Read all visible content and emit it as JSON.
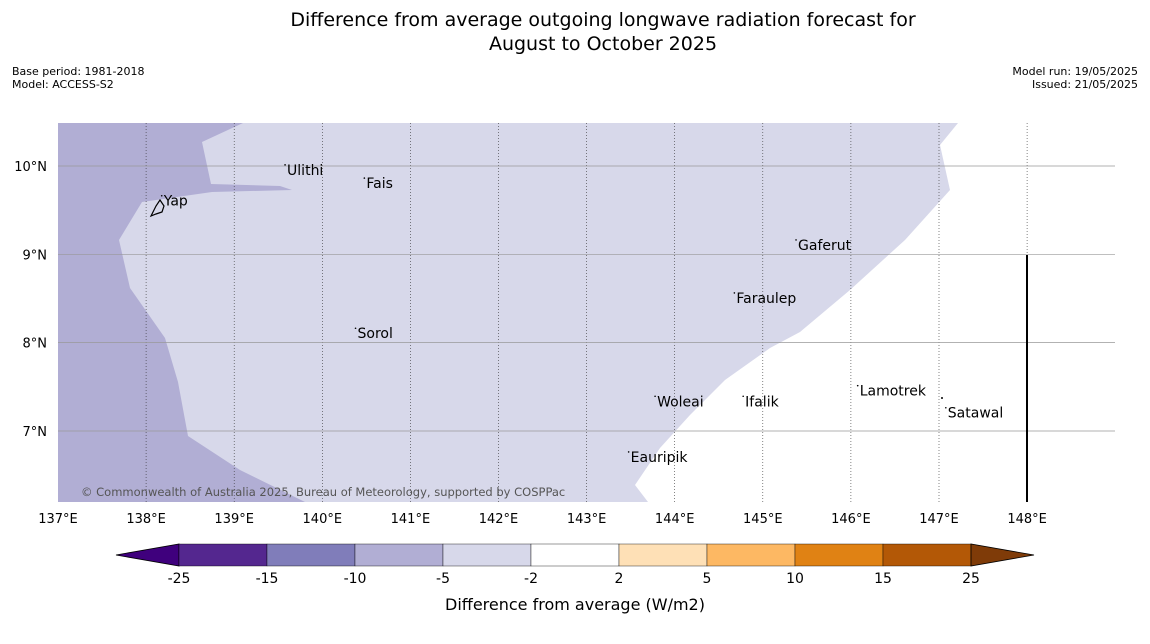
{
  "header": {
    "title_line1": "Difference from average outgoing longwave radiation forecast for",
    "title_line2": "August to October 2025",
    "base_period": "Base period: 1981-2018",
    "model": "Model: ACCESS-S2",
    "model_run": "Model run: 19/05/2025",
    "issued": "Issued: 21/05/2025"
  },
  "map": {
    "lon_ticks": [
      "137°E",
      "138°E",
      "139°E",
      "140°E",
      "141°E",
      "142°E",
      "143°E",
      "144°E",
      "145°E",
      "146°E",
      "147°E",
      "148°E"
    ],
    "lat_ticks": [
      "10°N",
      "9°N",
      "8°N",
      "7°N"
    ],
    "places": [
      {
        "name": "Ulithi",
        "lon": 139.6,
        "lat": 9.9
      },
      {
        "name": "Fais",
        "lon": 140.5,
        "lat": 9.75
      },
      {
        "name": "Yap",
        "lon": 138.2,
        "lat": 9.55
      },
      {
        "name": "Gaferut",
        "lon": 145.4,
        "lat": 9.05
      },
      {
        "name": "Faraulep",
        "lon": 144.7,
        "lat": 8.45
      },
      {
        "name": "Sorol",
        "lon": 140.4,
        "lat": 8.05
      },
      {
        "name": "Lamotrek",
        "lon": 146.1,
        "lat": 7.4
      },
      {
        "name": "Woleai",
        "lon": 143.8,
        "lat": 7.28
      },
      {
        "name": "Ifalik",
        "lon": 144.8,
        "lat": 7.28
      },
      {
        "name": "Satawal",
        "lon": 147.1,
        "lat": 7.15
      },
      {
        "name": "Eauripik",
        "lon": 143.5,
        "lat": 6.65
      }
    ],
    "credit": "© Commonwealth of Australia 2025, Bureau of Meteorology, supported by COSPPac"
  },
  "colorbar": {
    "bins": [
      {
        "color": "#3f007d"
      },
      {
        "color": "#54278f"
      },
      {
        "color": "#807dba"
      },
      {
        "color": "#b1aed4"
      },
      {
        "color": "#d7d8ea"
      },
      {
        "color": "#ffffff"
      },
      {
        "color": "#fee0b6"
      },
      {
        "color": "#fdb863"
      },
      {
        "color": "#e08214"
      },
      {
        "color": "#b35806"
      },
      {
        "color": "#7f3b08"
      }
    ],
    "labels": [
      "-25",
      "-15",
      "-10",
      "-5",
      "-2",
      "2",
      "5",
      "10",
      "15",
      "25"
    ],
    "title": "Difference from average (W/m2)"
  }
}
